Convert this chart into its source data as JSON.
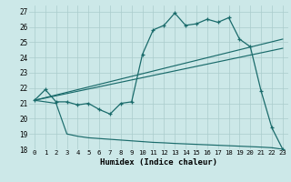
{
  "xlabel": "Humidex (Indice chaleur)",
  "background_color": "#cce8e8",
  "grid_color": "#aacccc",
  "line_color": "#1a6b6b",
  "xlim": [
    -0.5,
    23.5
  ],
  "ylim": [
    18,
    27.4
  ],
  "xticks": [
    0,
    1,
    2,
    3,
    4,
    5,
    6,
    7,
    8,
    9,
    10,
    11,
    12,
    13,
    14,
    15,
    16,
    17,
    18,
    19,
    20,
    21,
    22,
    23
  ],
  "yticks": [
    18,
    19,
    20,
    21,
    22,
    23,
    24,
    25,
    26,
    27
  ],
  "series1_x": [
    0,
    1,
    2,
    3,
    4,
    5,
    6,
    7,
    8,
    9,
    10,
    11,
    12,
    13,
    14,
    15,
    16,
    17,
    18,
    19,
    20,
    21,
    22,
    23
  ],
  "series1_y": [
    21.2,
    21.9,
    21.1,
    21.1,
    20.9,
    21.0,
    20.6,
    20.3,
    21.0,
    21.1,
    24.2,
    25.8,
    26.1,
    26.9,
    26.1,
    26.2,
    26.5,
    26.3,
    26.6,
    25.2,
    24.7,
    21.8,
    19.4,
    18.0
  ],
  "series2_x": [
    0,
    23
  ],
  "series2_y": [
    21.2,
    25.2
  ],
  "series3_x": [
    0,
    23
  ],
  "series3_y": [
    21.2,
    24.6
  ],
  "series4_x": [
    0,
    1,
    2,
    3,
    4,
    5,
    6,
    7,
    8,
    9,
    10,
    11,
    12,
    13,
    14,
    15,
    16,
    17,
    18,
    19,
    20,
    21,
    22,
    23
  ],
  "series4_y": [
    21.2,
    21.1,
    21.0,
    19.0,
    18.85,
    18.75,
    18.7,
    18.65,
    18.6,
    18.55,
    18.5,
    18.45,
    18.42,
    18.38,
    18.35,
    18.32,
    18.29,
    18.26,
    18.23,
    18.2,
    18.17,
    18.14,
    18.1,
    18.0
  ]
}
